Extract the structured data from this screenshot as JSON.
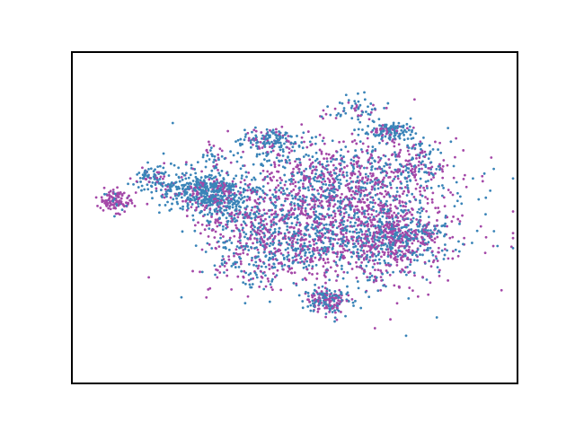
{
  "chart_data": {
    "type": "scatter",
    "title": "",
    "xlabel": "",
    "ylabel": "",
    "xlim": [
      -100,
      100
    ],
    "ylim": [
      -100,
      100
    ],
    "axis_ticks": false,
    "grid": false,
    "legend": "none",
    "point_size": 1.4,
    "series": [
      {
        "color": "#3a84b8"
      },
      {
        "color": "#a448a8"
      }
    ],
    "clusters": [
      {
        "cx": -80,
        "cy": 10,
        "sx": 3.5,
        "sy": 3.5,
        "n": 120,
        "mix": 0.15
      },
      {
        "cx": -40,
        "cy": 16,
        "sx": 10,
        "sy": 6,
        "n": 520,
        "mix": 0.8
      },
      {
        "cx": -65,
        "cy": 24,
        "sx": 4,
        "sy": 3,
        "n": 80,
        "mix": 0.75
      },
      {
        "cx": -37,
        "cy": 38,
        "sx": 3,
        "sy": 3,
        "n": 30,
        "mix": 0.7
      },
      {
        "cx": -11,
        "cy": 47,
        "sx": 7,
        "sy": 4,
        "n": 150,
        "mix": 0.75
      },
      {
        "cx": 42,
        "cy": 52,
        "sx": 6,
        "sy": 3,
        "n": 130,
        "mix": 0.75
      },
      {
        "cx": 26,
        "cy": 65,
        "sx": 8,
        "sy": 4,
        "n": 60,
        "mix": 0.75
      },
      {
        "cx": 55,
        "cy": 36,
        "sx": 7,
        "sy": 8,
        "n": 100,
        "mix": 0.55
      },
      {
        "cx": 20,
        "cy": 0,
        "sx": 28,
        "sy": 22,
        "n": 1400,
        "mix": 0.4
      },
      {
        "cx": -10,
        "cy": -10,
        "sx": 15,
        "sy": 12,
        "n": 450,
        "mix": 0.5
      },
      {
        "cx": 40,
        "cy": -15,
        "sx": 12,
        "sy": 10,
        "n": 400,
        "mix": 0.45
      },
      {
        "cx": 20,
        "cy": 25,
        "sx": 22,
        "sy": 10,
        "n": 420,
        "mix": 0.45
      },
      {
        "cx": 15,
        "cy": -50,
        "sx": 5,
        "sy": 4,
        "n": 180,
        "mix": 0.55
      },
      {
        "cx": -17,
        "cy": -35,
        "sx": 6,
        "sy": 3,
        "n": 40,
        "mix": 0.45
      },
      {
        "cx": -30,
        "cy": -27,
        "sx": 3,
        "sy": 3,
        "n": 15,
        "mix": 0.6
      },
      {
        "cx": 45,
        "cy": -10,
        "sx": 4,
        "sy": 4,
        "n": 80,
        "mix": 0.6
      },
      {
        "cx": 59,
        "cy": -10,
        "sx": 4,
        "sy": 5,
        "n": 60,
        "mix": 0.6
      },
      {
        "cx": -35,
        "cy": 2,
        "sx": 6,
        "sy": 6,
        "n": 80,
        "mix": 0.6
      }
    ],
    "seed": 20240607
  }
}
